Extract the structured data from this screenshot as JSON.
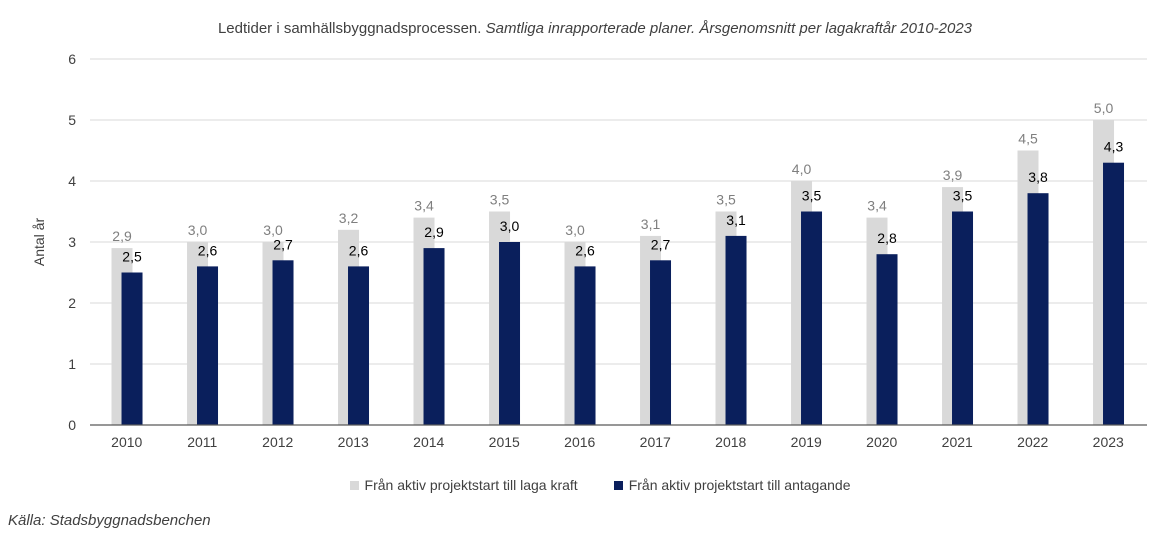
{
  "chart_data": {
    "type": "bar",
    "title": "Ledtider i samhällsbyggnadsprocessen.",
    "subtitle": "Samtliga inrapporterade planer. Årsgenomsnitt per lagakraftår 2010-2023",
    "ylabel": "Antal år",
    "xlabel": "",
    "ylim": [
      0,
      6
    ],
    "yticks": [
      "0",
      "1",
      "2",
      "3",
      "4",
      "5",
      "6"
    ],
    "grid": true,
    "legend_position": "bottom",
    "categories": [
      "2010",
      "2011",
      "2012",
      "2013",
      "2014",
      "2015",
      "2016",
      "2017",
      "2018",
      "2019",
      "2020",
      "2021",
      "2022",
      "2023"
    ],
    "series": [
      {
        "name": "Från aktiv projektstart till laga kraft",
        "color": "#d9d9d9",
        "values": [
          2.9,
          3.0,
          3.0,
          3.2,
          3.4,
          3.5,
          3.0,
          3.1,
          3.5,
          4.0,
          3.4,
          3.9,
          4.5,
          5.0
        ],
        "labels": [
          "2,9",
          "3,0",
          "3,0",
          "3,2",
          "3,4",
          "3,5",
          "3,0",
          "3,1",
          "3,5",
          "4,0",
          "3,4",
          "3,9",
          "4,5",
          "5,0"
        ]
      },
      {
        "name": "Från aktiv projektstart till antagande",
        "color": "#0a1f5c",
        "values": [
          2.5,
          2.6,
          2.7,
          2.6,
          2.9,
          3.0,
          2.6,
          2.7,
          3.1,
          3.5,
          2.8,
          3.5,
          3.8,
          4.3
        ],
        "labels": [
          "2,5",
          "2,6",
          "2,7",
          "2,6",
          "2,9",
          "3,0",
          "2,6",
          "2,7",
          "3,1",
          "3,5",
          "2,8",
          "3,5",
          "3,8",
          "4,3"
        ]
      }
    ]
  },
  "source": "Källa: Stadsbyggnadsbenchen"
}
